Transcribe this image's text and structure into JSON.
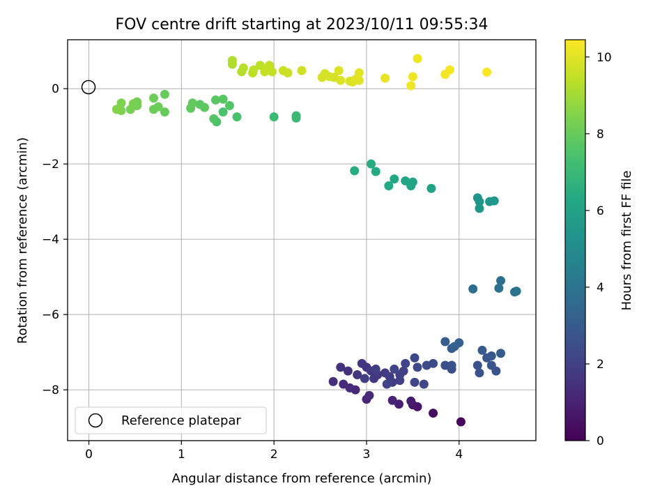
{
  "chart_data": {
    "type": "scatter",
    "title": "FOV centre drift starting at 2023/10/11 09:55:34",
    "xlabel": "Angular distance from reference (arcmin)",
    "ylabel": "Rotation from reference (arcmin)",
    "xlim": [
      -0.23,
      4.83
    ],
    "ylim": [
      -9.35,
      1.3
    ],
    "xticks": [
      0,
      1,
      2,
      3,
      4
    ],
    "yticks": [
      0,
      -2,
      -4,
      -6,
      -8
    ],
    "grid": true,
    "colorbar": {
      "label": "Hours from first FF file",
      "range": [
        0,
        10.45
      ],
      "ticks": [
        0,
        2,
        4,
        6,
        8,
        10
      ],
      "colormap": "viridis"
    },
    "legend": {
      "position": "bottom-left",
      "entries": [
        "Reference platepar"
      ]
    },
    "reference_point": {
      "x": 0,
      "y": 0,
      "label": "Reference platepar"
    },
    "series": [
      {
        "point_format": "[x_arcmin, y_arcmin, hours]",
        "points": [
          [
            4.02,
            -8.85,
            0.2
          ],
          [
            3.72,
            -8.62,
            0.4
          ],
          [
            3.55,
            -8.45,
            0.6
          ],
          [
            3.5,
            -8.4,
            0.7
          ],
          [
            3.48,
            -8.3,
            0.8
          ],
          [
            3.35,
            -8.38,
            0.9
          ],
          [
            3.28,
            -8.28,
            1.0
          ],
          [
            3.0,
            -8.25,
            1.1
          ],
          [
            3.03,
            -8.15,
            1.2
          ],
          [
            2.88,
            -8.0,
            1.2
          ],
          [
            2.82,
            -7.95,
            1.3
          ],
          [
            2.75,
            -7.85,
            1.3
          ],
          [
            2.64,
            -7.78,
            1.4
          ],
          [
            2.72,
            -7.4,
            1.5
          ],
          [
            2.8,
            -7.5,
            1.5
          ],
          [
            2.9,
            -7.6,
            1.6
          ],
          [
            2.95,
            -7.3,
            1.6
          ],
          [
            3.0,
            -7.4,
            1.6
          ],
          [
            3.05,
            -7.5,
            1.7
          ],
          [
            3.08,
            -7.7,
            1.7
          ],
          [
            3.12,
            -7.6,
            1.7
          ],
          [
            3.2,
            -7.55,
            1.8
          ],
          [
            3.25,
            -7.65,
            1.8
          ],
          [
            3.28,
            -7.8,
            1.9
          ],
          [
            3.1,
            -7.45,
            1.9
          ],
          [
            2.98,
            -7.7,
            1.9
          ],
          [
            3.36,
            -7.6,
            2.0
          ],
          [
            3.36,
            -7.75,
            2.0
          ],
          [
            3.4,
            -7.5,
            2.0
          ],
          [
            3.42,
            -7.3,
            2.1
          ],
          [
            3.3,
            -7.45,
            2.1
          ],
          [
            3.22,
            -7.85,
            2.1
          ],
          [
            3.52,
            -7.8,
            2.2
          ],
          [
            3.62,
            -7.85,
            2.2
          ],
          [
            3.52,
            -7.15,
            2.3
          ],
          [
            3.55,
            -7.4,
            2.3
          ],
          [
            3.65,
            -7.35,
            2.4
          ],
          [
            3.72,
            -7.3,
            2.4
          ],
          [
            3.85,
            -7.35,
            2.5
          ],
          [
            3.92,
            -7.45,
            2.5
          ],
          [
            3.92,
            -7.35,
            2.6
          ],
          [
            4.2,
            -7.35,
            2.6
          ],
          [
            4.22,
            -7.55,
            2.7
          ],
          [
            4.4,
            -7.5,
            2.7
          ],
          [
            4.35,
            -7.35,
            2.8
          ],
          [
            4.3,
            -7.15,
            2.8
          ],
          [
            4.35,
            -7.1,
            2.9
          ],
          [
            4.45,
            -7.03,
            3.0
          ],
          [
            4.25,
            -6.95,
            3.0
          ],
          [
            3.85,
            -6.72,
            3.1
          ],
          [
            3.92,
            -6.9,
            3.1
          ],
          [
            3.95,
            -6.85,
            3.2
          ],
          [
            4.0,
            -6.75,
            3.2
          ],
          [
            4.15,
            -5.32,
            3.7
          ],
          [
            4.45,
            -5.1,
            3.8
          ],
          [
            4.43,
            -5.3,
            3.9
          ],
          [
            4.62,
            -5.38,
            4.0
          ],
          [
            4.6,
            -5.4,
            4.0
          ],
          [
            4.2,
            -2.9,
            5.4
          ],
          [
            4.22,
            -3.0,
            5.4
          ],
          [
            4.22,
            -3.18,
            5.5
          ],
          [
            4.33,
            -3.0,
            5.5
          ],
          [
            4.38,
            -2.98,
            5.5
          ],
          [
            3.7,
            -2.65,
            6.0
          ],
          [
            3.5,
            -2.48,
            6.1
          ],
          [
            3.48,
            -2.58,
            6.1
          ],
          [
            3.42,
            -2.45,
            6.2
          ],
          [
            3.3,
            -2.4,
            6.2
          ],
          [
            3.24,
            -2.58,
            6.3
          ],
          [
            3.1,
            -2.2,
            6.3
          ],
          [
            3.05,
            -2.0,
            6.4
          ],
          [
            2.87,
            -2.18,
            6.5
          ],
          [
            2.24,
            -0.72,
            7.0
          ],
          [
            2.24,
            -0.78,
            7.0
          ],
          [
            2.0,
            -0.75,
            7.1
          ],
          [
            1.6,
            -0.75,
            7.4
          ],
          [
            1.45,
            -0.62,
            7.5
          ],
          [
            1.38,
            -0.88,
            7.5
          ],
          [
            1.35,
            -0.8,
            7.6
          ],
          [
            1.52,
            -0.45,
            7.6
          ],
          [
            1.45,
            -0.28,
            7.7
          ],
          [
            1.37,
            -0.3,
            7.7
          ],
          [
            1.25,
            -0.5,
            7.8
          ],
          [
            1.2,
            -0.42,
            7.8
          ],
          [
            1.12,
            -0.38,
            7.9
          ],
          [
            1.1,
            -0.52,
            7.9
          ],
          [
            0.82,
            -0.62,
            8.0
          ],
          [
            0.82,
            -0.15,
            8.0
          ],
          [
            0.75,
            -0.48,
            8.1
          ],
          [
            0.7,
            -0.55,
            8.1
          ],
          [
            0.7,
            -0.25,
            8.1
          ],
          [
            0.52,
            -0.35,
            8.2
          ],
          [
            0.52,
            -0.45,
            8.2
          ],
          [
            0.48,
            -0.4,
            8.3
          ],
          [
            0.45,
            -0.55,
            8.3
          ],
          [
            0.35,
            -0.38,
            8.4
          ],
          [
            0.33,
            -0.52,
            8.4
          ],
          [
            0.35,
            -0.58,
            8.4
          ],
          [
            0.3,
            -0.55,
            8.5
          ],
          [
            1.55,
            0.75,
            9.2
          ],
          [
            1.55,
            0.65,
            9.2
          ],
          [
            1.65,
            0.45,
            9.3
          ],
          [
            1.67,
            0.55,
            9.3
          ],
          [
            1.77,
            0.42,
            9.4
          ],
          [
            1.78,
            0.5,
            9.4
          ],
          [
            1.85,
            0.62,
            9.4
          ],
          [
            1.9,
            0.45,
            9.5
          ],
          [
            1.92,
            0.55,
            9.5
          ],
          [
            1.95,
            0.62,
            9.5
          ],
          [
            1.98,
            0.45,
            9.5
          ],
          [
            2.1,
            0.48,
            9.6
          ],
          [
            2.15,
            0.42,
            9.6
          ],
          [
            2.3,
            0.48,
            9.7
          ],
          [
            2.52,
            0.3,
            9.8
          ],
          [
            2.55,
            0.4,
            9.8
          ],
          [
            2.6,
            0.32,
            9.8
          ],
          [
            2.65,
            0.3,
            9.8
          ],
          [
            2.7,
            0.48,
            9.9
          ],
          [
            2.72,
            0.22,
            9.9
          ],
          [
            2.82,
            0.2,
            9.9
          ],
          [
            2.85,
            0.18,
            9.9
          ],
          [
            2.88,
            0.25,
            10.0
          ],
          [
            2.92,
            0.42,
            10.0
          ],
          [
            2.92,
            0.22,
            10.0
          ],
          [
            3.2,
            0.28,
            10.1
          ],
          [
            3.48,
            0.08,
            10.2
          ],
          [
            3.5,
            0.32,
            10.2
          ],
          [
            3.55,
            0.8,
            10.2
          ],
          [
            3.85,
            0.38,
            10.3
          ],
          [
            3.9,
            0.5,
            10.3
          ],
          [
            4.3,
            0.44,
            10.4
          ]
        ]
      }
    ]
  }
}
